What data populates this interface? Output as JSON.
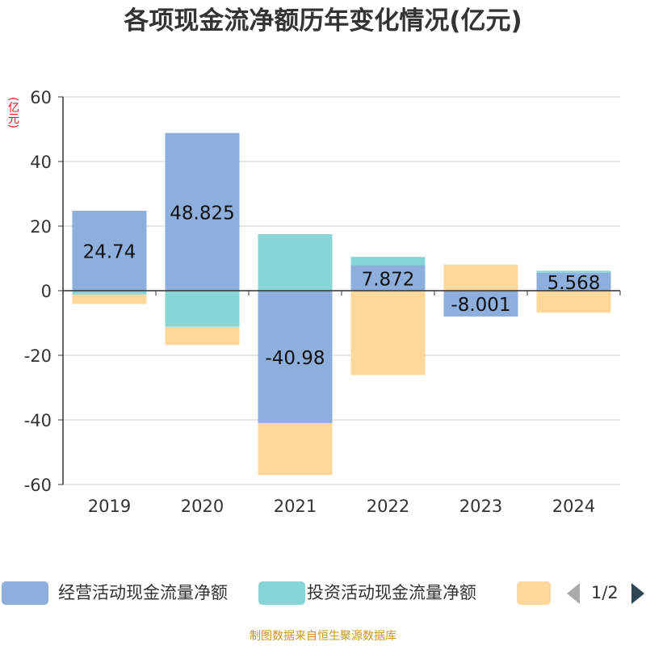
{
  "chart_data": {
    "type": "bar",
    "stacked": true,
    "title": "各项现金流净额历年变化情况(亿元)",
    "unit_label": "(亿元)",
    "categories": [
      "2019",
      "2020",
      "2021",
      "2022",
      "2023",
      "2024"
    ],
    "ylim": [
      -60,
      60
    ],
    "yticks": [
      60,
      40,
      20,
      0,
      -20,
      -40,
      -60
    ],
    "grid": true,
    "legend_position": "bottom",
    "legend_page": "1/2",
    "series": [
      {
        "name": "经营活动现金流量净额",
        "color": "#8eaedb",
        "values": [
          24.74,
          48.825,
          -40.98,
          7.872,
          -8.001,
          5.568
        ],
        "labels": [
          "24.74",
          "48.825",
          "-40.98",
          "7.872",
          "-8.001",
          "5.568"
        ]
      },
      {
        "name": "投资活动现金流量净额",
        "color": "#88d5d8",
        "values": [
          -1.2,
          -11.2,
          17.5,
          2.6,
          0,
          0.6
        ]
      },
      {
        "name": "",
        "color": "#fdd89a",
        "values": [
          -2.9,
          -5.6,
          -16.1,
          -26.1,
          8.1,
          -6.8
        ]
      }
    ]
  },
  "source_text": "制图数据来自恒生聚源数据库"
}
